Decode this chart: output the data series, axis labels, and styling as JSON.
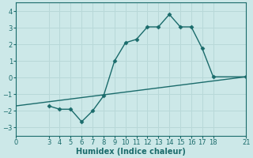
{
  "title": "",
  "xlabel": "Humidex (Indice chaleur)",
  "ylabel": "",
  "background_color": "#cce8e8",
  "grid_color": "#b8d8d8",
  "line_color": "#1a6b6b",
  "xlim": [
    0,
    21
  ],
  "ylim": [
    -3.5,
    4.5
  ],
  "xticks": [
    0,
    3,
    4,
    5,
    6,
    7,
    8,
    9,
    10,
    11,
    12,
    13,
    14,
    15,
    16,
    17,
    18,
    21
  ],
  "yticks": [
    -3,
    -2,
    -1,
    0,
    1,
    2,
    3,
    4
  ],
  "curve_x": [
    3,
    4,
    5,
    6,
    7,
    8,
    9,
    10,
    11,
    12,
    13,
    14,
    15,
    16,
    17,
    18,
    21
  ],
  "curve_y": [
    -1.7,
    -1.9,
    -1.9,
    -2.65,
    -2.0,
    -1.1,
    1.0,
    2.1,
    2.3,
    3.05,
    3.05,
    3.8,
    3.05,
    3.05,
    1.75,
    0.05,
    0.05
  ],
  "line2_x": [
    0,
    21
  ],
  "line2_y": [
    -1.7,
    0.05
  ],
  "marker_size": 2.5,
  "line_width": 1.0,
  "tick_fontsize": 6,
  "label_fontsize": 7
}
